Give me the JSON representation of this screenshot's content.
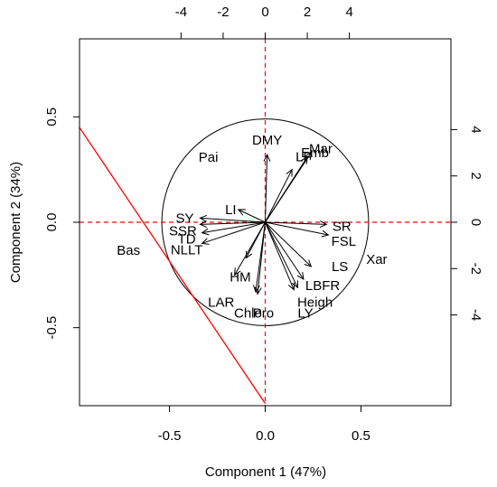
{
  "chart_data": {
    "type": "scatter",
    "subtype": "biplot",
    "title": "",
    "xlabel": "Component 1 (47%)",
    "ylabel": "Component 2 (34%)",
    "xlim": [
      -0.97,
      0.97
    ],
    "ylim": [
      -0.87,
      0.87
    ],
    "x_ticks": [
      -0.5,
      0.0,
      0.5
    ],
    "y_ticks": [
      -0.5,
      0.0,
      0.5
    ],
    "x2_ticks": [
      -4,
      -2,
      0,
      2,
      4
    ],
    "y2_ticks": [
      -4,
      -2,
      0,
      2,
      4
    ],
    "x2_tick_labels": [
      "-4",
      "-2",
      "0",
      "2",
      "4"
    ],
    "y2_tick_labels": [
      "-4",
      "-2",
      "0",
      "2",
      "4"
    ],
    "x_tick_labels": [
      "-0.5",
      "0.0",
      "0.5"
    ],
    "y_tick_labels": [
      "-0.5",
      "0.0",
      "0.5"
    ],
    "grid": false,
    "correlation_circle_radius": 0.54,
    "reference_lines": [
      {
        "orientation": "vertical",
        "value": 0,
        "style": "dashed",
        "color": "#ff0000"
      },
      {
        "orientation": "horizontal",
        "value": 0,
        "style": "dashed",
        "color": "#ff0000"
      },
      {
        "orientation": "slanted",
        "from": [
          -1.0,
          0.49
        ],
        "to": [
          0.0,
          -0.86
        ],
        "style": "solid",
        "color": "#ff0000"
      }
    ],
    "variables": [
      {
        "label": "DMY",
        "x": 0.01,
        "y": 0.32,
        "lx": 0.01,
        "ly": 0.39
      },
      {
        "label": "Mar",
        "x": 0.24,
        "y": 0.33,
        "lx": 0.29,
        "ly": 0.35
      },
      {
        "label": "Emb",
        "x": 0.22,
        "y": 0.31,
        "lx": 0.26,
        "ly": 0.33
      },
      {
        "label": "LF",
        "x": 0.14,
        "y": 0.25,
        "lx": 0.2,
        "ly": 0.31
      },
      {
        "label": "LI",
        "x": -0.14,
        "y": 0.06,
        "lx": -0.18,
        "ly": 0.06
      },
      {
        "label": "SY",
        "x": -0.34,
        "y": 0.02,
        "lx": -0.42,
        "ly": 0.02
      },
      {
        "label": "SSR",
        "x": -0.34,
        "y": -0.01,
        "lx": -0.43,
        "ly": -0.04
      },
      {
        "label": "TD",
        "x": -0.33,
        "y": -0.05,
        "lx": -0.41,
        "ly": -0.08
      },
      {
        "label": "NLLT",
        "x": -0.33,
        "y": -0.1,
        "lx": -0.41,
        "ly": -0.13
      },
      {
        "label": "SR",
        "x": 0.32,
        "y": -0.01,
        "lx": 0.4,
        "ly": -0.02
      },
      {
        "label": "FSL",
        "x": 0.33,
        "y": -0.06,
        "lx": 0.41,
        "ly": -0.09
      },
      {
        "label": "LS",
        "x": 0.24,
        "y": -0.21,
        "lx": 0.39,
        "ly": -0.21
      },
      {
        "label": "LBFR",
        "x": 0.2,
        "y": -0.27,
        "lx": 0.3,
        "ly": -0.3
      },
      {
        "label": "Heigh",
        "x": 0.17,
        "y": -0.31,
        "lx": 0.26,
        "ly": -0.38
      },
      {
        "label": "LY",
        "x": 0.15,
        "y": -0.32,
        "lx": 0.21,
        "ly": -0.43
      },
      {
        "label": "HM",
        "x": -0.1,
        "y": -0.17,
        "lx": -0.13,
        "ly": -0.26
      },
      {
        "label": "LAR",
        "x": -0.16,
        "y": -0.25,
        "lx": -0.23,
        "ly": -0.38
      },
      {
        "label": "Chlo",
        "x": -0.05,
        "y": -0.33,
        "lx": -0.09,
        "ly": -0.43
      },
      {
        "label": "Pro",
        "x": -0.04,
        "y": -0.34,
        "lx": -0.01,
        "ly": -0.43
      }
    ],
    "observations": [
      {
        "label": "Pai",
        "x": -2.7,
        "y": 2.8
      },
      {
        "label": "Bas",
        "x": -6.5,
        "y": -1.2
      },
      {
        "label": "Xar",
        "x": 5.3,
        "y": -1.6
      }
    ],
    "observation_scale_units": "secondary axes"
  }
}
